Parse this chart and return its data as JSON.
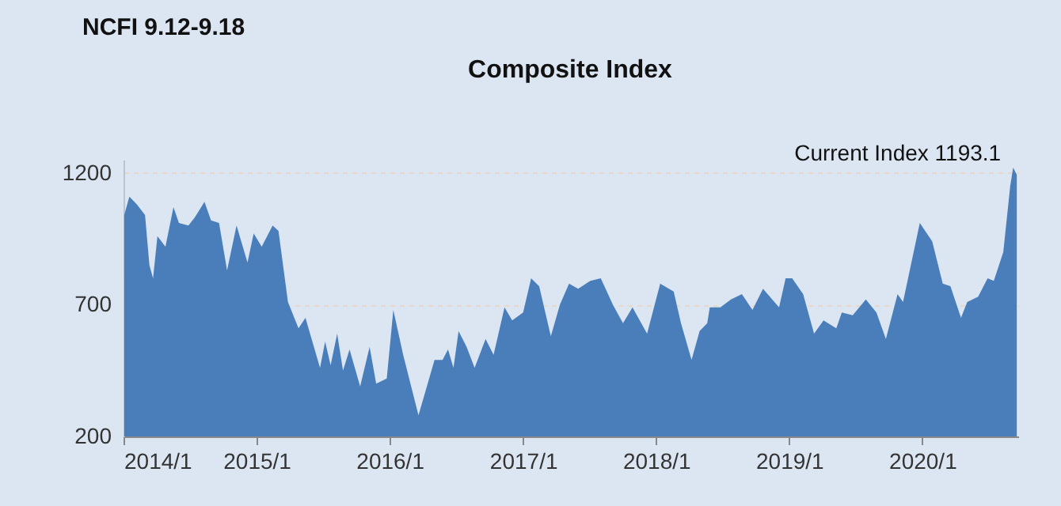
{
  "chart_data": {
    "type": "area",
    "title": "Composite Index",
    "annotations": [
      "NCFI 9.12-9.18",
      {
        "text": "Current Index 1193.1",
        "x": "2020-09-16",
        "y": 1193.1
      }
    ],
    "x": [
      "2014-01-03",
      "2014-01-17",
      "2014-02-07",
      "2014-03-01",
      "2014-03-13",
      "2014-03-23",
      "2014-04-04",
      "2014-04-26",
      "2014-05-18",
      "2014-06-02",
      "2014-06-28",
      "2014-07-15",
      "2014-08-11",
      "2014-08-29",
      "2014-09-20",
      "2014-10-12",
      "2014-11-07",
      "2014-12-07",
      "2014-12-24",
      "2015-01-15",
      "2015-02-14",
      "2015-03-02",
      "2015-03-28",
      "2015-04-26",
      "2015-05-15",
      "2015-06-24",
      "2015-07-08",
      "2015-07-23",
      "2015-08-10",
      "2015-08-26",
      "2015-09-13",
      "2015-10-12",
      "2015-11-07",
      "2015-11-25",
      "2015-12-24",
      "2016-01-11",
      "2016-02-07",
      "2016-03-20",
      "2016-04-12",
      "2016-05-03",
      "2016-05-25",
      "2016-06-09",
      "2016-06-24",
      "2016-07-08",
      "2016-07-30",
      "2016-08-21",
      "2016-09-20",
      "2016-10-12",
      "2016-11-11",
      "2016-12-02",
      "2017-01-01",
      "2017-01-23",
      "2017-02-14",
      "2017-03-18",
      "2017-04-12",
      "2017-05-07",
      "2017-06-01",
      "2017-07-04",
      "2017-08-02",
      "2017-09-04",
      "2017-10-02",
      "2017-10-28",
      "2017-12-07",
      "2018-01-12",
      "2018-02-18",
      "2018-03-10",
      "2018-04-08",
      "2018-04-30",
      "2018-05-21",
      "2018-05-28",
      "2018-06-26",
      "2018-07-25",
      "2018-08-24",
      "2018-09-22",
      "2018-10-21",
      "2018-12-04",
      "2018-12-22",
      "2019-01-09",
      "2019-02-08",
      "2019-03-10",
      "2019-04-05",
      "2019-05-10",
      "2019-05-25",
      "2019-06-24",
      "2019-07-30",
      "2019-08-28",
      "2019-09-23",
      "2019-10-25",
      "2019-11-09",
      "2019-12-25",
      "2020-01-28",
      "2020-02-26",
      "2020-03-18",
      "2020-04-16",
      "2020-05-03",
      "2020-06-02",
      "2020-06-28",
      "2020-07-15",
      "2020-08-10",
      "2020-08-29",
      "2020-09-06",
      "2020-09-16"
    ],
    "series": [
      {
        "color": "#4a7ebb",
        "values": [
          1040,
          1110,
          1080,
          1040,
          850,
          800,
          960,
          920,
          1070,
          1010,
          1000,
          1030,
          1090,
          1020,
          1010,
          830,
          1000,
          860,
          970,
          920,
          1000,
          980,
          710,
          610,
          650,
          460,
          560,
          470,
          590,
          450,
          530,
          390,
          540,
          400,
          420,
          680,
          510,
          280,
          390,
          490,
          490,
          530,
          460,
          600,
          540,
          460,
          570,
          510,
          690,
          640,
          670,
          800,
          770,
          580,
          700,
          780,
          760,
          790,
          800,
          700,
          630,
          690,
          590,
          780,
          750,
          630,
          490,
          600,
          630,
          690,
          690,
          720,
          740,
          680,
          760,
          690,
          800,
          800,
          740,
          590,
          640,
          610,
          670,
          660,
          720,
          670,
          570,
          740,
          710,
          1010,
          940,
          780,
          770,
          650,
          710,
          730,
          800,
          790,
          900,
          1150,
          1220,
          1193.1
        ]
      }
    ],
    "xlim": [
      "2014-01-01",
      "2020-09-20"
    ],
    "xticks": [
      {
        "value": "2014-01-01",
        "label": "2014/1"
      },
      {
        "value": "2015-01-01",
        "label": "2015/1"
      },
      {
        "value": "2016-01-01",
        "label": "2016/1"
      },
      {
        "value": "2017-01-01",
        "label": "2017/1"
      },
      {
        "value": "2018-01-01",
        "label": "2018/1"
      },
      {
        "value": "2019-01-01",
        "label": "2019/1"
      },
      {
        "value": "2020-01-01",
        "label": "2020/1"
      }
    ],
    "ylim": [
      200,
      1250
    ],
    "yticks": [
      200,
      700,
      1200
    ],
    "grid": "y"
  }
}
